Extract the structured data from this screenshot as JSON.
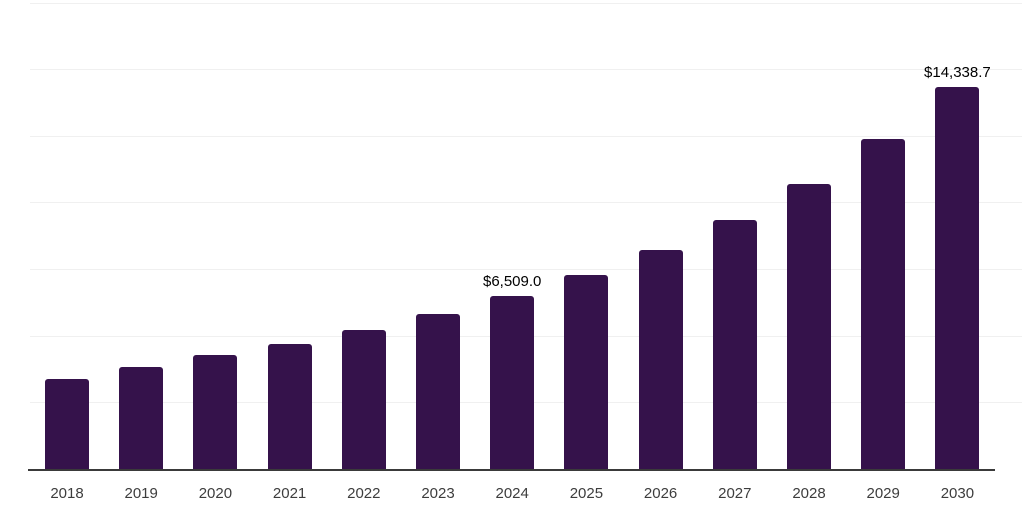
{
  "chart": {
    "background_color": "#ffffff",
    "bar_color": "#35124b",
    "axis_line_color": "#3a3a3a",
    "gridline_color": "#f0f0f0",
    "data_label_color": "#000000",
    "tick_label_color": "#3d3d3d"
  },
  "chart_data": {
    "type": "bar",
    "title": "",
    "xlabel": "",
    "ylabel": "",
    "categories": [
      "2018",
      "2019",
      "2020",
      "2021",
      "2022",
      "2023",
      "2024",
      "2025",
      "2026",
      "2027",
      "2028",
      "2029",
      "2030"
    ],
    "values": [
      3390,
      3820,
      4260,
      4700,
      5200,
      5810,
      6509.0,
      7290,
      8210,
      9360,
      10710,
      12370,
      14338.7
    ],
    "data_labels": [
      null,
      null,
      null,
      null,
      null,
      null,
      "$6,509.0",
      null,
      null,
      null,
      null,
      null,
      "$14,338.7"
    ],
    "ylim": [
      0,
      17500
    ],
    "gridline_step": 2500,
    "grid": true,
    "legend": false,
    "y_axis_tick_labels_visible": false
  }
}
